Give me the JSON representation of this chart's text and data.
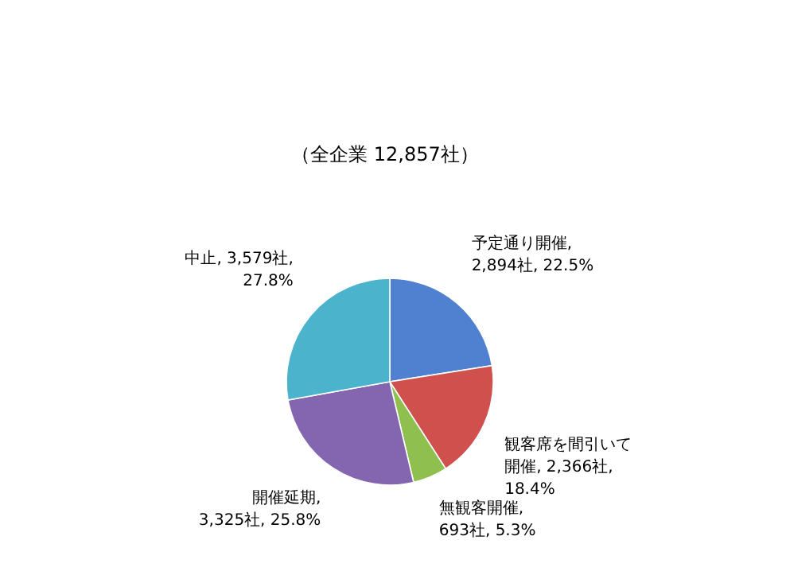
{
  "chart_data": {
    "type": "pie",
    "title": "（全企業 12,857社）",
    "categories": [
      "予定通り開催",
      "観客席を間引いて開催",
      "無観客開催",
      "開催延期",
      "中止"
    ],
    "values": [
      2894,
      2366,
      693,
      3325,
      3579
    ],
    "value_labels": [
      ", 2,894社, 22.5%",
      ", 2,366社, 18.4%",
      ", 693社, 5.3%",
      ", 3,325社, 25.8%",
      ", 3,579社, 27.8%"
    ],
    "colors": [
      "#4f81d0",
      "#d0504d",
      "#8fc04f",
      "#8466b0",
      "#4bb4cc"
    ]
  }
}
